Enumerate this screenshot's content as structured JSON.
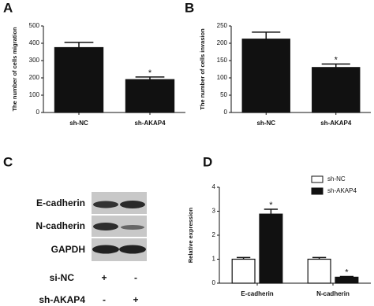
{
  "panels": [
    "A",
    "B",
    "C",
    "D"
  ],
  "chart_data": [
    {
      "type": "bar",
      "ylabel": "The number of cells migration",
      "categories": [
        "sh-NC",
        "sh-AKAP4"
      ],
      "series": [
        {
          "color": "#111111",
          "values": [
            375,
            190
          ],
          "errors": [
            30,
            15
          ],
          "annotations": [
            null,
            "*"
          ]
        }
      ],
      "ylim": [
        0,
        500
      ],
      "yticks": [
        0,
        100,
        200,
        300,
        400,
        500
      ]
    },
    {
      "type": "bar",
      "ylabel": "The number of cells invasion",
      "categories": [
        "sh-NC",
        "sh-AKAP4"
      ],
      "series": [
        {
          "color": "#111111",
          "values": [
            212,
            130
          ],
          "errors": [
            20,
            10
          ],
          "annotations": [
            null,
            "*"
          ]
        }
      ],
      "ylim": [
        0,
        250
      ],
      "yticks": [
        0,
        50,
        100,
        150,
        200,
        250
      ]
    },
    {
      "type": "bar",
      "ylabel": "Relative expression",
      "categories": [
        "E-cadherin",
        "N-cadherin"
      ],
      "series": [
        {
          "name": "sh-NC",
          "color": "#ffffff",
          "values": [
            1.0,
            1.0
          ],
          "errors": [
            0.07,
            0.07
          ],
          "annotations": [
            null,
            null
          ]
        },
        {
          "name": "sh-AKAP4",
          "color": "#111111",
          "values": [
            2.88,
            0.25
          ],
          "errors": [
            0.2,
            0.03
          ],
          "annotations": [
            "*",
            "*"
          ]
        }
      ],
      "ylim": [
        0,
        4
      ],
      "yticks": [
        0,
        1,
        2,
        3,
        4
      ],
      "legend": "upper right"
    }
  ],
  "blot": {
    "rows": [
      "E-cadherin",
      "N-cadherin",
      "GAPDH"
    ],
    "conditions": [
      {
        "label": "si-NC",
        "marks": [
          "+",
          "-"
        ]
      },
      {
        "label": "sh-AKAP4",
        "marks": [
          "-",
          "+"
        ]
      }
    ]
  }
}
